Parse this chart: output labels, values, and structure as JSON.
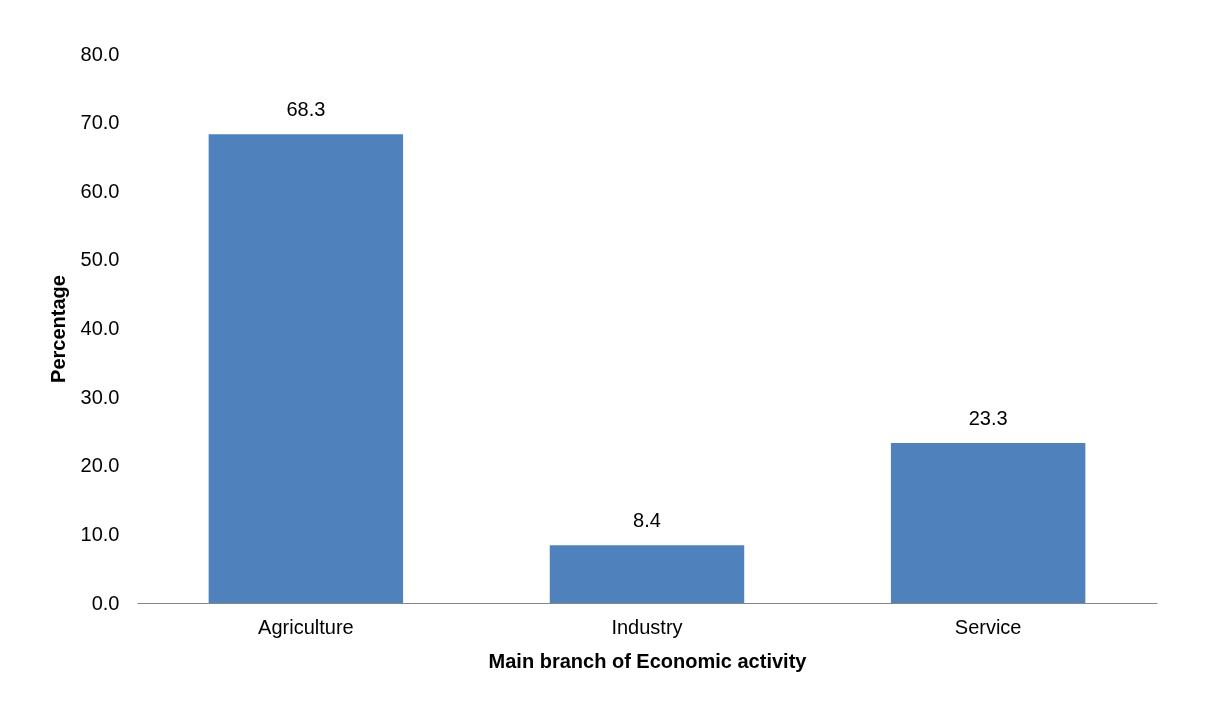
{
  "chart_data": {
    "type": "bar",
    "xlabel": "Main branch of Economic activity",
    "ylabel": "Percentage",
    "categories": [
      "Agriculture",
      "Industry",
      "Service"
    ],
    "values": [
      68.3,
      8.4,
      23.3
    ],
    "color": "#4f81bd",
    "ylim": [
      0,
      80
    ],
    "yticks": [
      {
        "value": 0,
        "label": "0.0"
      },
      {
        "value": 10,
        "label": "10.0"
      },
      {
        "value": 20,
        "label": "20.0"
      },
      {
        "value": 30,
        "label": "30.0"
      },
      {
        "value": 40,
        "label": "40.0"
      },
      {
        "value": 50,
        "label": "50.0"
      },
      {
        "value": 60,
        "label": "60.0"
      },
      {
        "value": 70,
        "label": "70.0"
      },
      {
        "value": 80,
        "label": "80.0"
      }
    ],
    "grid": false,
    "data_labels": true
  }
}
